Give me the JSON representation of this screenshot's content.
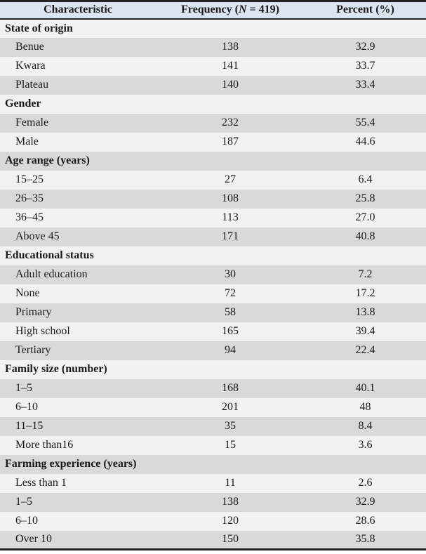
{
  "table": {
    "header": {
      "characteristic": "Characteristic",
      "frequency_prefix": "Frequency (",
      "frequency_n": "N",
      "frequency_suffix": " = 419)",
      "percent": "Percent (%)"
    },
    "colors": {
      "header_bg": "#dbe5f1",
      "row_light": "#f2f2f2",
      "row_gray": "#d9d9d9",
      "border": "#222222",
      "text": "#1a1a1a"
    },
    "rows": [
      {
        "kind": "section",
        "label": "State of origin"
      },
      {
        "kind": "data",
        "label": "Benue",
        "frequency": "138",
        "percent": "32.9"
      },
      {
        "kind": "data",
        "label": "Kwara",
        "frequency": "141",
        "percent": "33.7"
      },
      {
        "kind": "data",
        "label": "Plateau",
        "frequency": "140",
        "percent": "33.4"
      },
      {
        "kind": "section",
        "label": "Gender"
      },
      {
        "kind": "data",
        "label": "Female",
        "frequency": "232",
        "percent": "55.4"
      },
      {
        "kind": "data",
        "label": "Male",
        "frequency": "187",
        "percent": "44.6"
      },
      {
        "kind": "section",
        "label": "Age range (years)"
      },
      {
        "kind": "data",
        "label": "15–25",
        "frequency": "27",
        "percent": "6.4"
      },
      {
        "kind": "data",
        "label": "26–35",
        "frequency": "108",
        "percent": "25.8"
      },
      {
        "kind": "data",
        "label": "36–45",
        "frequency": "113",
        "percent": "27.0"
      },
      {
        "kind": "data",
        "label": "Above 45",
        "frequency": "171",
        "percent": "40.8"
      },
      {
        "kind": "section",
        "label": "Educational status"
      },
      {
        "kind": "data",
        "label": "Adult education",
        "frequency": "30",
        "percent": "7.2"
      },
      {
        "kind": "data",
        "label": "None",
        "frequency": "72",
        "percent": "17.2"
      },
      {
        "kind": "data",
        "label": "Primary",
        "frequency": "58",
        "percent": "13.8"
      },
      {
        "kind": "data",
        "label": "High school",
        "frequency": "165",
        "percent": "39.4"
      },
      {
        "kind": "data",
        "label": "Tertiary",
        "frequency": "94",
        "percent": "22.4"
      },
      {
        "kind": "section",
        "label": "Family size (number)"
      },
      {
        "kind": "data",
        "label": "1–5",
        "frequency": "168",
        "percent": "40.1"
      },
      {
        "kind": "data",
        "label": "6–10",
        "frequency": "201",
        "percent": "48"
      },
      {
        "kind": "data",
        "label": "11–15",
        "frequency": "35",
        "percent": "8.4"
      },
      {
        "kind": "data",
        "label": "More than16",
        "frequency": "15",
        "percent": "3.6"
      },
      {
        "kind": "section",
        "label": "Farming experience (years)"
      },
      {
        "kind": "data",
        "label": "Less than 1",
        "frequency": "11",
        "percent": "2.6"
      },
      {
        "kind": "data",
        "label": "1–5",
        "frequency": "138",
        "percent": "32.9"
      },
      {
        "kind": "data",
        "label": "6–10",
        "frequency": "120",
        "percent": "28.6"
      },
      {
        "kind": "data",
        "label": "Over 10",
        "frequency": "150",
        "percent": "35.8"
      }
    ]
  }
}
